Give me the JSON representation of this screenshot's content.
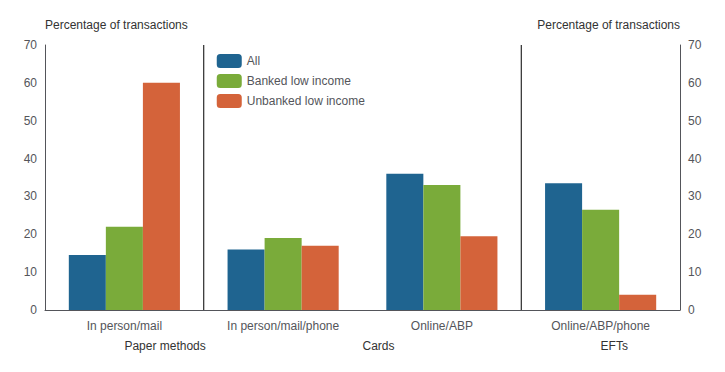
{
  "chart_data": {
    "type": "bar",
    "categories": [
      "In person/mail",
      "In person/mail/phone",
      "Online/ABP",
      "Online/ABP/phone"
    ],
    "series": [
      {
        "name": "All",
        "color": "#1f6490",
        "values": [
          14.5,
          16.0,
          36.0,
          33.5
        ]
      },
      {
        "name": "Banked low income",
        "color": "#7aab3a",
        "values": [
          22.0,
          19.0,
          33.0,
          26.5
        ]
      },
      {
        "name": "Unbanked low income",
        "color": "#d4633a",
        "values": [
          60.0,
          17.0,
          19.5,
          4.0
        ]
      }
    ],
    "ylabel": "Percentage of transactions",
    "y2label": "Percentage of transactions",
    "ylim": [
      0,
      70
    ],
    "yticks": [
      0,
      10,
      20,
      30,
      40,
      50,
      60,
      70
    ],
    "y2lim": [
      0,
      70
    ],
    "y2ticks": [
      0,
      10,
      20,
      30,
      40,
      50,
      60,
      70
    ],
    "annotations": [
      {
        "text": "Paper methods",
        "categories": [
          "In person/mail"
        ]
      },
      {
        "text": "Cards",
        "categories": [
          "In person/mail/phone",
          "Online/ABP"
        ]
      },
      {
        "text": "EFTs",
        "categories": [
          "Online/ABP/phone"
        ]
      }
    ],
    "legend": "upper left",
    "grid": false
  }
}
